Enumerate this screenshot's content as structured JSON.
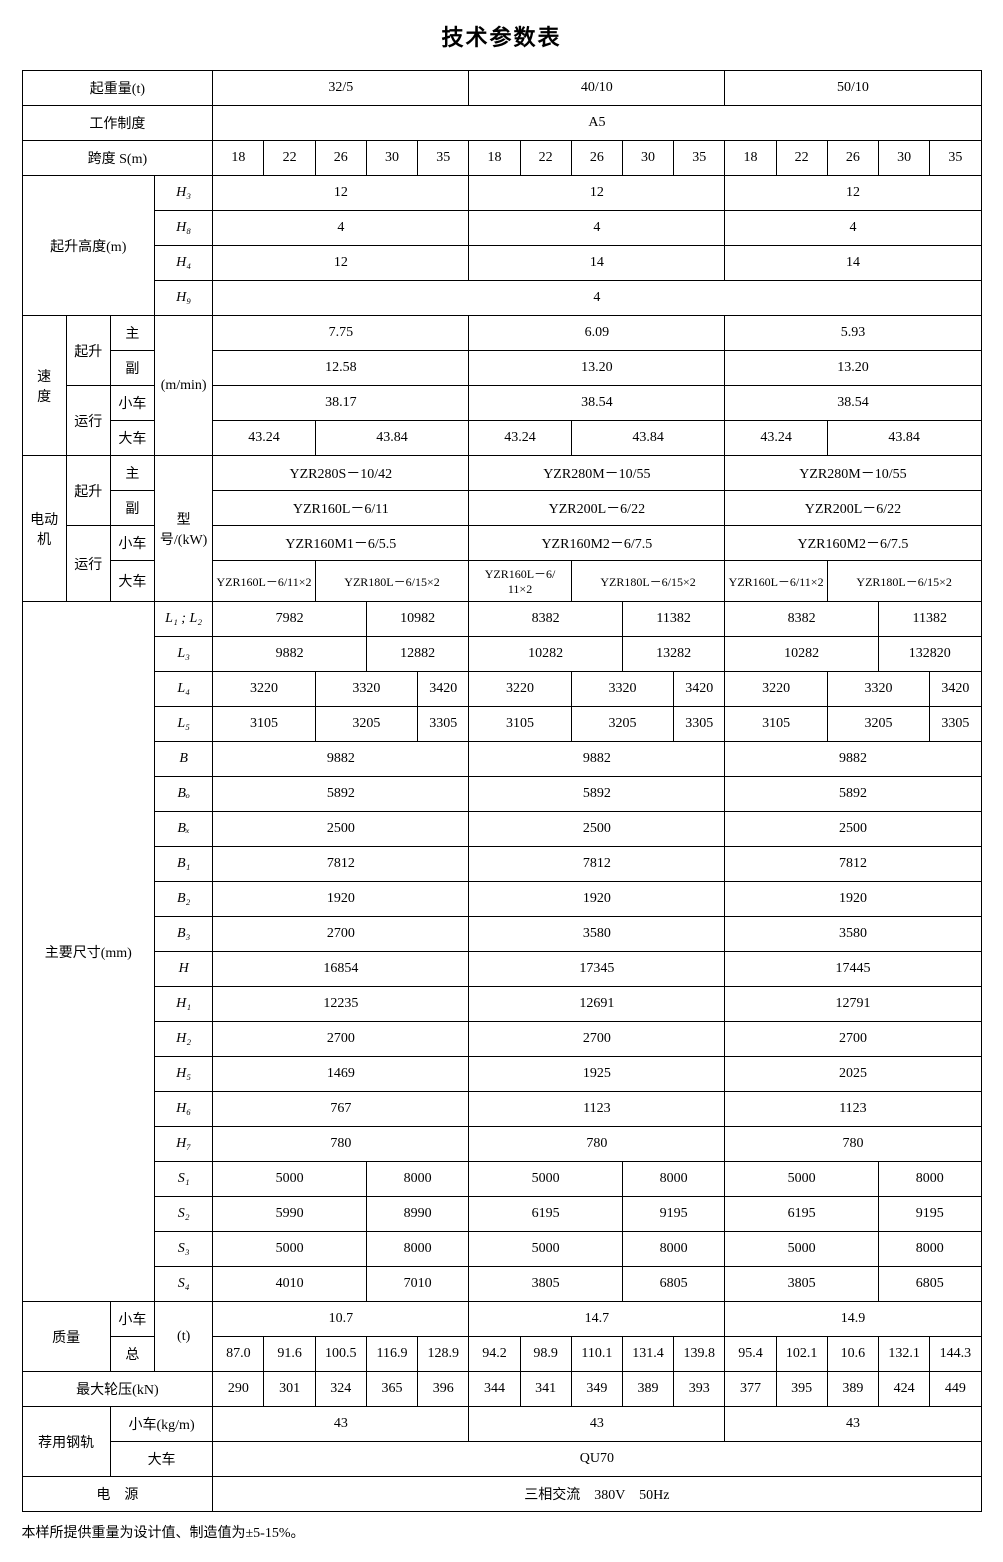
{
  "title": "技术参数表",
  "headers": {
    "lifting_capacity": "起重量(t)",
    "capacities": [
      "32/5",
      "40/10",
      "50/10"
    ],
    "working_system": "工作制度",
    "working_system_value": "A5",
    "span": "跨度 S(m)",
    "spans": [
      "18",
      "22",
      "26",
      "30",
      "35",
      "18",
      "22",
      "26",
      "30",
      "35",
      "18",
      "22",
      "26",
      "30",
      "35"
    ]
  },
  "lift_height": {
    "label": "起升高度(m)",
    "rows": [
      {
        "sym": "H₃",
        "vals": [
          "12",
          "12",
          "12"
        ]
      },
      {
        "sym": "H₈",
        "vals": [
          "4",
          "4",
          "4"
        ]
      },
      {
        "sym": "H₄",
        "vals": [
          "12",
          "14",
          "14"
        ]
      },
      {
        "sym": "H₉",
        "full": "4"
      }
    ]
  },
  "speed": {
    "label": "速　度",
    "unit": "(m/min)",
    "lift_label": "起升",
    "run_label": "运行",
    "main": "主",
    "aux": "副",
    "trolley": "小车",
    "crane": "大车",
    "rows": [
      {
        "vals": [
          "7.75",
          "6.09",
          "5.93"
        ]
      },
      {
        "vals": [
          "12.58",
          "13.20",
          "13.20"
        ]
      },
      {
        "vals": [
          "38.17",
          "38.54",
          "38.54"
        ]
      },
      {
        "split": [
          [
            "43.24",
            "43.84"
          ],
          [
            "43.24",
            "43.84"
          ],
          [
            "43.24",
            "43.84"
          ]
        ]
      }
    ]
  },
  "motor": {
    "label": "电动机",
    "model_label": "型号/(kW)",
    "rows": [
      {
        "vals": [
          "YZR280S－10/42",
          "YZR280M－10/55",
          "YZR280M－10/55"
        ]
      },
      {
        "vals": [
          "YZR160L－6/11",
          "YZR200L－6/22",
          "YZR200L－6/22"
        ]
      },
      {
        "vals": [
          "YZR160M1－6/5.5",
          "YZR160M2－6/7.5",
          "YZR160M2－6/7.5"
        ]
      },
      {
        "split": [
          [
            "YZR160L－6/11×2",
            "YZR180L－6/15×2"
          ],
          [
            "YZR160L－6/ 11×2",
            "YZR180L－6/15×2"
          ],
          [
            "YZR160L－6/11×2",
            "YZR180L－6/15×2"
          ]
        ]
      }
    ]
  },
  "dims": {
    "label": "主要尺寸(mm)",
    "rows": [
      {
        "sym": "L₁ ; L₂",
        "split": [
          [
            "7982",
            "10982"
          ],
          [
            "8382",
            "11382"
          ],
          [
            "8382",
            "11382"
          ]
        ]
      },
      {
        "sym": "L₃",
        "split": [
          [
            "9882",
            "12882"
          ],
          [
            "10282",
            "13282"
          ],
          [
            "10282",
            "132820"
          ]
        ]
      },
      {
        "sym": "L₄",
        "tri": [
          [
            "3220",
            "3320",
            "3420"
          ],
          [
            "3220",
            "3320",
            "3420"
          ],
          [
            "3220",
            "3320",
            "3420"
          ]
        ]
      },
      {
        "sym": "L₅",
        "tri": [
          [
            "3105",
            "3205",
            "3305"
          ],
          [
            "3105",
            "3205",
            "3305"
          ],
          [
            "3105",
            "3205",
            "3305"
          ]
        ]
      },
      {
        "sym": "B",
        "vals": [
          "9882",
          "9882",
          "9882"
        ]
      },
      {
        "sym": "Bₒ",
        "vals": [
          "5892",
          "5892",
          "5892"
        ]
      },
      {
        "sym": "Bₓ",
        "vals": [
          "2500",
          "2500",
          "2500"
        ]
      },
      {
        "sym": "B₁",
        "vals": [
          "7812",
          "7812",
          "7812"
        ]
      },
      {
        "sym": "B₂",
        "vals": [
          "1920",
          "1920",
          "1920"
        ]
      },
      {
        "sym": "B₃",
        "vals": [
          "2700",
          "3580",
          "3580"
        ]
      },
      {
        "sym": "H",
        "vals": [
          "16854",
          "17345",
          "17445"
        ]
      },
      {
        "sym": "H₁",
        "vals": [
          "12235",
          "12691",
          "12791"
        ]
      },
      {
        "sym": "H₂",
        "vals": [
          "2700",
          "2700",
          "2700"
        ]
      },
      {
        "sym": "H₅",
        "vals": [
          "1469",
          "1925",
          "2025"
        ]
      },
      {
        "sym": "H₆",
        "vals": [
          "767",
          "1123",
          "1123"
        ]
      },
      {
        "sym": "H₇",
        "vals": [
          "780",
          "780",
          "780"
        ]
      },
      {
        "sym": "S₁",
        "split": [
          [
            "5000",
            "8000"
          ],
          [
            "5000",
            "8000"
          ],
          [
            "5000",
            "8000"
          ]
        ]
      },
      {
        "sym": "S₂",
        "split": [
          [
            "5990",
            "8990"
          ],
          [
            "6195",
            "9195"
          ],
          [
            "6195",
            "9195"
          ]
        ]
      },
      {
        "sym": "S₃",
        "split": [
          [
            "5000",
            "8000"
          ],
          [
            "5000",
            "8000"
          ],
          [
            "5000",
            "8000"
          ]
        ]
      },
      {
        "sym": "S₄",
        "split": [
          [
            "4010",
            "7010"
          ],
          [
            "3805",
            "6805"
          ],
          [
            "3805",
            "6805"
          ]
        ]
      }
    ]
  },
  "mass": {
    "label": "质量",
    "unit": "(t)",
    "trolley": "小车",
    "total": "总",
    "trolley_vals": [
      "10.7",
      "14.7",
      "14.9"
    ],
    "total_vals": [
      "87.0",
      "91.6",
      "100.5",
      "116.9",
      "128.9",
      "94.2",
      "98.9",
      "110.1",
      "131.4",
      "139.8",
      "95.4",
      "102.1",
      "10.6",
      "132.1",
      "144.3"
    ]
  },
  "wheel_pressure": {
    "label": "最大轮压(kN)",
    "vals": [
      "290",
      "301",
      "324",
      "365",
      "396",
      "344",
      "341",
      "349",
      "389",
      "393",
      "377",
      "395",
      "389",
      "424",
      "449"
    ]
  },
  "rail": {
    "label": "荐用钢轨",
    "trolley": "小车(kg/m)",
    "crane": "大车",
    "trolley_vals": [
      "43",
      "43",
      "43"
    ],
    "crane_val": "QU70"
  },
  "power": {
    "label": "电　源",
    "val": "三相交流　380V　50Hz"
  },
  "footnote": "本样所提供重量为设计值、制造值为±5-15%。"
}
